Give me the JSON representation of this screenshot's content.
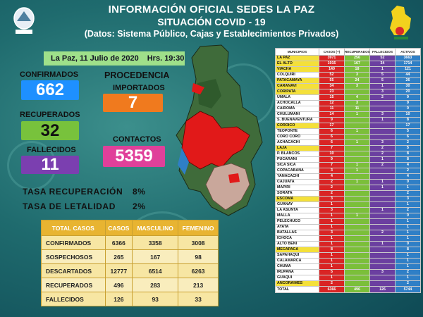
{
  "header": {
    "title": "INFORMACIÓN OFICIAL SEDES LA PAZ",
    "subtitle": "SITUACIÓN  COVID - 19",
    "source": "(Datos: Sistema Público, Cajas y Establecimientos Privados)"
  },
  "datebar": {
    "date": "La Paz, 11  Julio de 2020",
    "time": "Hrs. 19:30"
  },
  "summary": {
    "confirmados_label": "CONFIRMADOS",
    "confirmados": "662",
    "recuperados_label": "RECUPERADOS",
    "recuperados": "32",
    "fallecidos_label": "FALLECIDOS",
    "fallecidos": "11",
    "procedencia_label": "PROCEDENCIA",
    "importados_label": "IMPORTADOS",
    "importados": "7",
    "contactos_label": "CONTACTOS",
    "contactos": "5359"
  },
  "rates": {
    "recuperacion_label": "TASA RECUPERACIÓN",
    "recuperacion": "8%",
    "letalidad_label": "TASA  DE LETALIDAD",
    "letalidad": "2%"
  },
  "totals_table": {
    "headers": [
      "TOTAL CASOS",
      "CASOS",
      "MASCULINO",
      "FEMENINO"
    ],
    "rows": [
      [
        "CONFIRMADOS",
        "6366",
        "3358",
        "3008"
      ],
      [
        "SOSPECHOSOS",
        "265",
        "167",
        "98"
      ],
      [
        "DESCARTADOS",
        "12777",
        "6514",
        "6263"
      ],
      [
        "RECUPERADOS",
        "496",
        "283",
        "213"
      ],
      [
        "FALLECIDOS",
        "126",
        "93",
        "33"
      ]
    ]
  },
  "colors": {
    "confirmados": "#1e90ff",
    "recuperados": "#78c23c",
    "fallecidos": "#7b3fb0",
    "importados": "#f07a1e",
    "contactos": "#e0409a"
  },
  "municipios_table": {
    "headers": [
      "MUNICIPIOS",
      "CASOS (+)",
      "RECUPERADOS",
      "FALLECIDOS",
      "ACTIVOS"
    ],
    "rows": [
      [
        "LA PAZ",
        "3971",
        "256",
        "52",
        "3663",
        true
      ],
      [
        "EL ALTO",
        "1915",
        "167",
        "34",
        "1714",
        true
      ],
      [
        "VIACHA",
        "140",
        "18",
        "1",
        "121",
        true
      ],
      [
        "COLQUIRI",
        "52",
        "3",
        "5",
        "44",
        false
      ],
      [
        "PATACAMAYA",
        "55",
        "24",
        "5",
        "26",
        true
      ],
      [
        "CARANAVI",
        "34",
        "3",
        "1",
        "30",
        true
      ],
      [
        "CORIPATA",
        "23",
        "",
        "3",
        "20",
        true
      ],
      [
        "UMALA",
        "15",
        "4",
        "2",
        "9",
        false
      ],
      [
        "ACHOCALLA",
        "12",
        "3",
        "",
        "9",
        false
      ],
      [
        "CAIROMA",
        "11",
        "11",
        "",
        "0",
        false
      ],
      [
        "CHULUMANI",
        "14",
        "1",
        "3",
        "10",
        false
      ],
      [
        "S. BUENAVENTURA",
        "9",
        "",
        "1",
        "8",
        false
      ],
      [
        "COROICO",
        "17",
        "",
        "",
        "17",
        true
      ],
      [
        "TEOPONTE",
        "6",
        "1",
        "",
        "5",
        false
      ],
      [
        "CORO CORO",
        "6",
        "",
        "",
        "6",
        false
      ],
      [
        "ACHACACHI",
        "6",
        "1",
        "3",
        "2",
        false
      ],
      [
        "LAJA",
        "7",
        "",
        "2",
        "5",
        true
      ],
      [
        "P. BLANCOS",
        "10",
        "",
        "2",
        "8",
        false
      ],
      [
        "PUCARANI",
        "9",
        "",
        "1",
        "8",
        false
      ],
      [
        "SICA SICA",
        "7",
        "1",
        "2",
        "4",
        false
      ],
      [
        "COPACABANA",
        "3",
        "1",
        "",
        "2",
        false
      ],
      [
        "YANACACHI",
        "4",
        "",
        "",
        "4",
        false
      ],
      [
        "CAJUATA",
        "2",
        "1",
        "1",
        "0",
        false
      ],
      [
        "MAPIRI",
        "2",
        "",
        "1",
        "1",
        false
      ],
      [
        "SORATA",
        "2",
        "",
        "",
        "2",
        false
      ],
      [
        "ESCOMA",
        "3",
        "",
        "",
        "3",
        true
      ],
      [
        "GUANAY",
        "1",
        "",
        "",
        "1",
        false
      ],
      [
        "LA ASUNTA",
        "3",
        "",
        "1",
        "2",
        false
      ],
      [
        "MALLA",
        "1",
        "1",
        "",
        "0",
        false
      ],
      [
        "PELECHUCO",
        "1",
        "",
        "",
        "1",
        false
      ],
      [
        "AYATA",
        "1",
        "",
        "",
        "1",
        false
      ],
      [
        "BATALLAS",
        "3",
        "",
        "2",
        "1",
        false
      ],
      [
        "ICHOCA",
        "1",
        "",
        "",
        "1",
        false
      ],
      [
        "ALTO BENI",
        "1",
        "",
        "1",
        "0",
        false
      ],
      [
        "MECAPACA",
        "8",
        "",
        "",
        "8",
        true
      ],
      [
        "SAPAHAQUI",
        "1",
        "",
        "",
        "1",
        false
      ],
      [
        "CALAMARCA",
        "1",
        "",
        "",
        "1",
        false
      ],
      [
        "CHUMA",
        "1",
        "",
        "",
        "1",
        false
      ],
      [
        "IRUPANA",
        "5",
        "",
        "3",
        "2",
        false
      ],
      [
        "GUAQUI",
        "1",
        "",
        "",
        "1",
        false
      ],
      [
        "ANCORAIMES",
        "2",
        "",
        "",
        "2",
        true
      ]
    ],
    "total": [
      "TOTAL",
      "6366",
      "496",
      "126",
      "5744"
    ]
  }
}
